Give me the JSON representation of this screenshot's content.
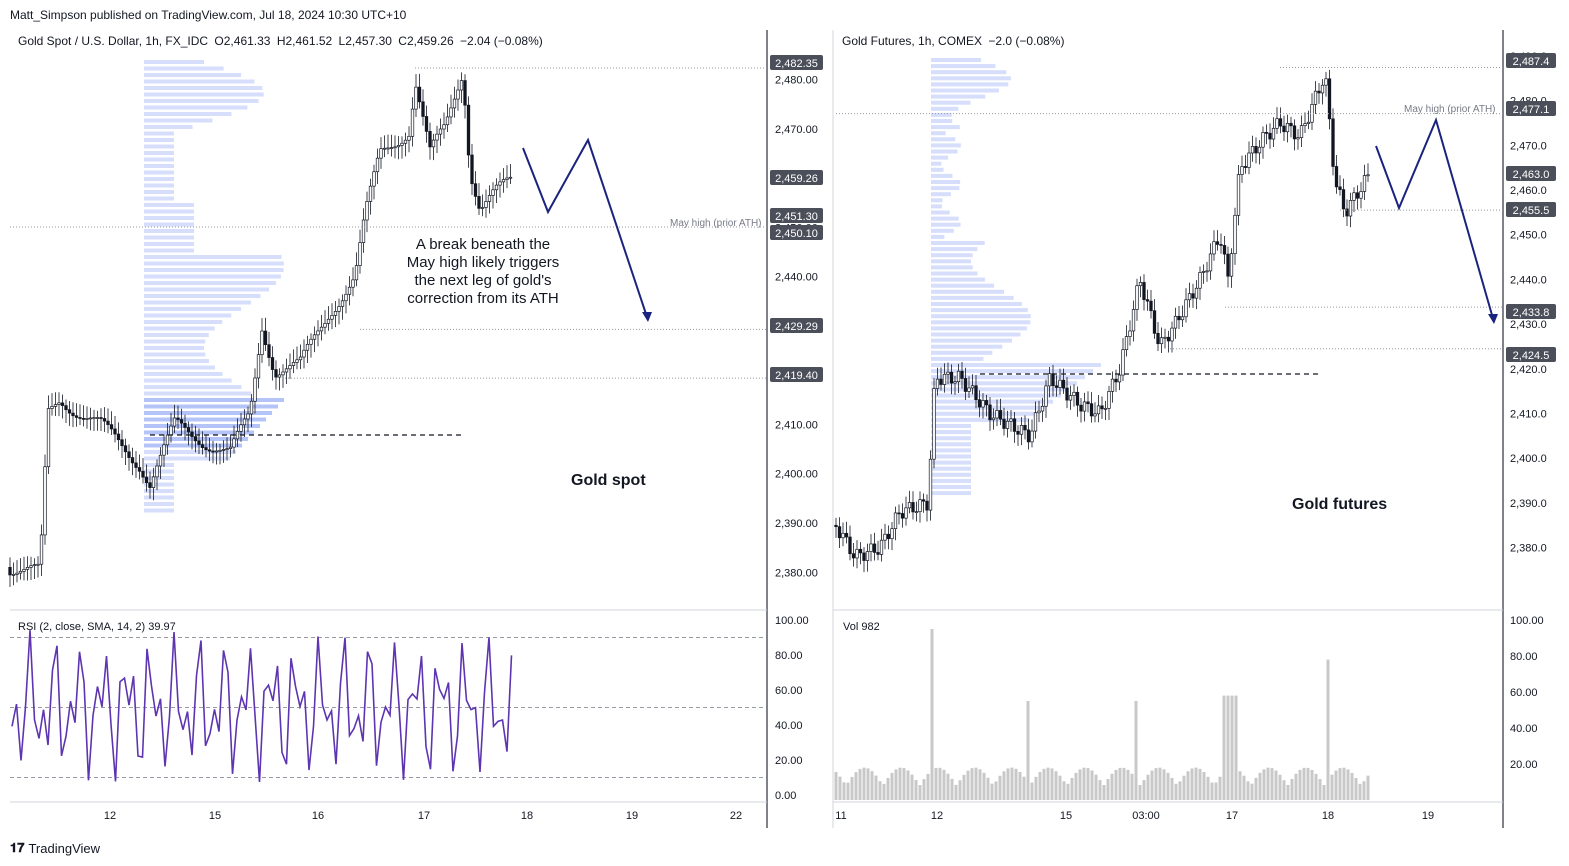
{
  "header": {
    "published": "Matt_Simpson published on TradingView.com, Jul 18, 2024 10:30 UTC+10"
  },
  "brand": {
    "name": "TradingView",
    "logo": "tradingview-logo-icon"
  },
  "colors": {
    "candle": "#131722",
    "profile": "#5b7cf0",
    "arrow": "#1a237e",
    "rsi": "#5e35b1",
    "volume": "#c8c8c8",
    "dotted": "#9598a1",
    "tag": "#4b4f5a"
  },
  "left": {
    "legend": {
      "symbol": "Gold Spot / U.S. Dollar, 1h, FX_IDC",
      "o": "O2,461.33",
      "h": "H2,461.52",
      "l": "L2,457.30",
      "c": "C2,459.26",
      "chg": "−2.04 (−0.08%)"
    },
    "annotation_lines": [
      "A break beneath the",
      "May high likely triggers",
      "the next leg of gold's",
      "correction from its ATH"
    ],
    "title": "Gold spot",
    "mayhigh": "May high (prior ATH)",
    "yaxis": [
      "2,480.00",
      "2,470.00",
      "2,460.00",
      "2,450.00",
      "2,440.00",
      "2,430.00",
      "2,420.00",
      "2,410.00",
      "2,400.00",
      "2,390.00",
      "2,380.00"
    ],
    "tags": [
      "2,482.35",
      "2,459.26",
      "2,451.30",
      "2,450.10",
      "2,429.29",
      "2,419.40"
    ],
    "xaxis": [
      "12",
      "15",
      "16",
      "17",
      "18",
      "19",
      "22"
    ],
    "rsi_legend": "RSI (2, close, SMA, 14, 2)  39.97",
    "rsi_axis": [
      "100.00",
      "80.00",
      "60.00",
      "40.00",
      "20.00",
      "0.00"
    ]
  },
  "right": {
    "legend": {
      "symbol": "Gold Futures, 1h, COMEX",
      "chg": "−2.0 (−0.08%)"
    },
    "title": "Gold futures",
    "mayhigh": "May high (prior ATH)",
    "yaxis": [
      "2,490.0",
      "2,480.0",
      "2,470.0",
      "2,460.0",
      "2,450.0",
      "2,440.0",
      "2,430.0",
      "2,420.0",
      "2,410.0",
      "2,400.0",
      "2,390.0",
      "2,380.0"
    ],
    "tags": [
      "2,487.4",
      "2,477.1",
      "2,463.0",
      "2,455.5",
      "2,433.8",
      "2,424.5"
    ],
    "xaxis": [
      "11",
      "12",
      "15",
      "03:00",
      "17",
      "18",
      "19"
    ],
    "vol_legend": "Vol  982",
    "vol_axis": [
      "100.00",
      "80.00",
      "60.00",
      "40.00",
      "20.00"
    ]
  },
  "chart_data": [
    {
      "type": "line",
      "title": "Gold Spot / U.S. Dollar, 1h, FX_IDC",
      "ylabel": "",
      "xlabel": "",
      "ylim": [
        2376,
        2486
      ],
      "x": [
        "12",
        "15",
        "16",
        "17",
        "18"
      ],
      "series": [
        {
          "values": [
            2408,
            2405,
            2421,
            2476,
            2459.26
          ]
        }
      ],
      "levels": {
        "may_high": 2451.3,
        "support": 2429.29,
        "pivot": 2419.4,
        "high": 2482.35
      },
      "grid": false
    },
    {
      "type": "line",
      "title": "Gold Futures, 1h, COMEX",
      "ylabel": "",
      "xlabel": "",
      "ylim": [
        2375,
        2492
      ],
      "x": [
        "11",
        "12",
        "15",
        "03:00",
        "17",
        "18"
      ],
      "series": [
        {
          "values": [
            2382,
            2415,
            2410,
            2426,
            2475,
            2463.0
          ]
        }
      ],
      "levels": {
        "may_high": 2477.1,
        "support": 2455.5,
        "pivot": 2424.5,
        "high": 2487.4
      },
      "grid": false
    }
  ]
}
